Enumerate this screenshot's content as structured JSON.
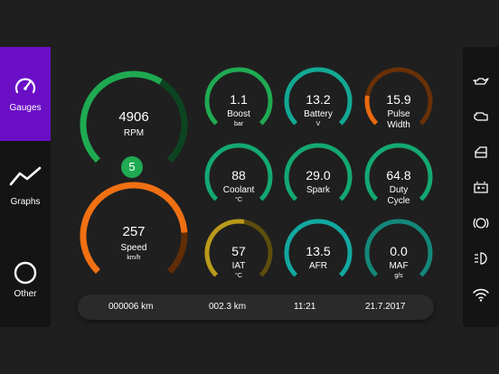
{
  "nav": {
    "gauges_label": "Gauges",
    "graphs_label": "Graphs",
    "other_label": "Other"
  },
  "big_gauges": {
    "rpm": {
      "value": "4906",
      "label": "RPM",
      "fraction": 0.62,
      "color": "#1faa52"
    },
    "speed": {
      "value": "257",
      "label": "Speed",
      "unit": "km/h",
      "fraction": 0.82,
      "color": "#f07012"
    }
  },
  "gear": "5",
  "small_gauges": [
    {
      "name": "boost",
      "value": "1.1",
      "label": "Boost",
      "unit": "bar",
      "color": "#1faa52"
    },
    {
      "name": "battery",
      "value": "13.2",
      "label": "Battery",
      "unit": "V",
      "color": "#12a894"
    },
    {
      "name": "pulse-width",
      "value": "15.9",
      "label": "Pulse Width",
      "unit": "",
      "color": "#e86a10"
    },
    {
      "name": "coolant",
      "value": "88",
      "label": "Coolant",
      "unit": "°C",
      "color": "#14a872"
    },
    {
      "name": "spark",
      "value": "29.0",
      "label": "Spark",
      "unit": "",
      "color": "#14a872"
    },
    {
      "name": "duty-cycle",
      "value": "64.8",
      "label": "Duty Cycle",
      "unit": "",
      "color": "#14a872"
    },
    {
      "name": "iat",
      "value": "57",
      "label": "IAT",
      "unit": "°C",
      "color": "#b99a1a"
    },
    {
      "name": "afr",
      "value": "13.5",
      "label": "AFR",
      "unit": "",
      "color": "#12a8a0"
    },
    {
      "name": "maf",
      "value": "0.0",
      "label": "MAF",
      "unit": "g/s",
      "color": "#13887a"
    }
  ],
  "bottom": {
    "odometer": "000006  km",
    "trip": "002.3  km",
    "time": "11:21",
    "date": "21.7.2017"
  },
  "right_icons": [
    "oil-can-icon",
    "engine-icon",
    "door-icon",
    "battery-icon",
    "brake-icon",
    "headlight-icon",
    "wifi-icon"
  ]
}
